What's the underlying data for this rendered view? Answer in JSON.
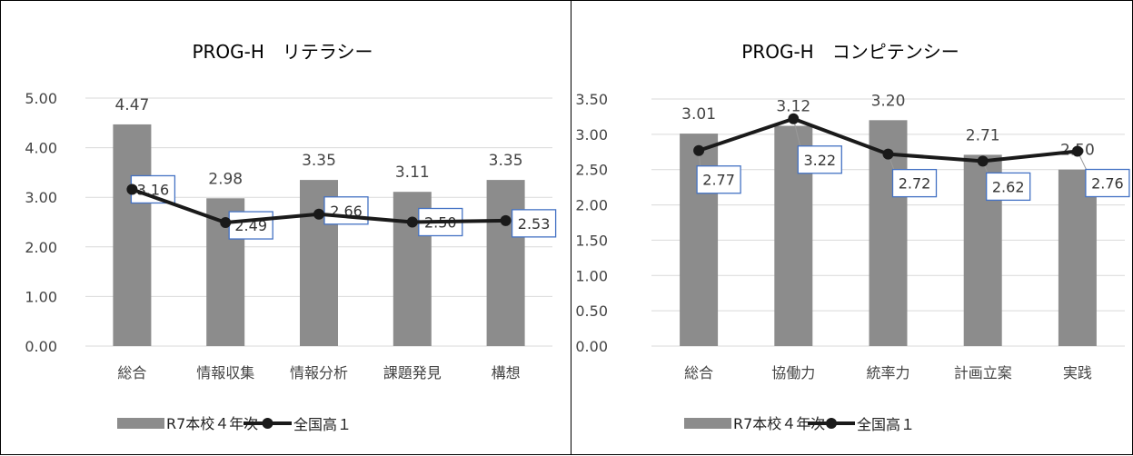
{
  "chart_data": [
    {
      "type": "bar",
      "title": "PROG-H　リテラシー",
      "categories": [
        "総合",
        "情報収集",
        "情報分析",
        "課題発見",
        "構想"
      ],
      "ylim": [
        0,
        5
      ],
      "yticks": [
        "0.00",
        "1.00",
        "2.00",
        "3.00",
        "4.00",
        "5.00"
      ],
      "grid": true,
      "legend_position": "bottom",
      "series": [
        {
          "name": "R7本校４年次",
          "type": "bar",
          "color": "#8c8c8c",
          "values": [
            4.47,
            2.98,
            3.35,
            3.11,
            3.35
          ],
          "labels": [
            "4.47",
            "2.98",
            "3.35",
            "3.11",
            "3.35"
          ]
        },
        {
          "name": "全国高１",
          "type": "line",
          "color": "#1a1a1a",
          "values": [
            3.16,
            2.49,
            2.66,
            2.5,
            2.53
          ],
          "labels": [
            "3.16",
            "2.49",
            "2.66",
            "2.50",
            "2.53"
          ]
        }
      ]
    },
    {
      "type": "bar",
      "title": "PROG-H　コンピテンシー",
      "categories": [
        "総合",
        "協働力",
        "統率力",
        "計画立案",
        "実践"
      ],
      "ylim": [
        0,
        3.5
      ],
      "yticks": [
        "0.00",
        "0.50",
        "1.00",
        "1.50",
        "2.00",
        "2.50",
        "3.00",
        "3.50"
      ],
      "grid": true,
      "legend_position": "bottom",
      "series": [
        {
          "name": "R7本校４年次",
          "type": "bar",
          "color": "#8c8c8c",
          "values": [
            3.01,
            3.12,
            3.2,
            2.71,
            2.5
          ],
          "labels": [
            "3.01",
            "3.12",
            "3.20",
            "2.71",
            "2.50"
          ]
        },
        {
          "name": "全国高１",
          "type": "line",
          "color": "#1a1a1a",
          "values": [
            2.77,
            3.22,
            2.72,
            2.62,
            2.76
          ],
          "labels": [
            "2.77",
            "3.22",
            "2.72",
            "2.62",
            "2.76"
          ]
        }
      ]
    }
  ],
  "colors": {
    "bar": "#8c8c8c",
    "line": "#1a1a1a",
    "label_border": "#4472c4",
    "grid": "#d9d9d9"
  }
}
